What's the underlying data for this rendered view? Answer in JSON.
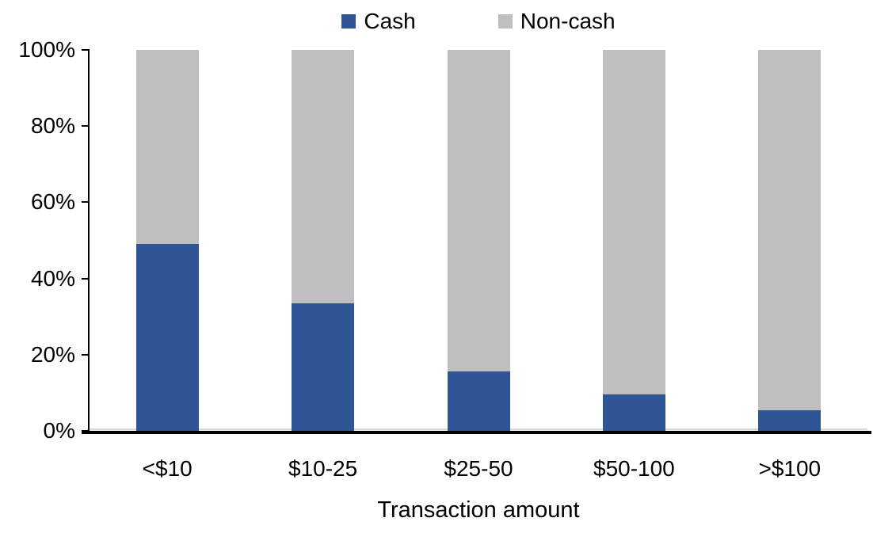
{
  "chart_data": {
    "type": "bar",
    "stacked": true,
    "orientation": "vertical",
    "title": "",
    "xlabel": "Transaction amount",
    "ylabel": "",
    "categories": [
      "<$10",
      "$10-25",
      "$25-50",
      "$50-100",
      ">$100"
    ],
    "series": [
      {
        "name": "Cash",
        "color": "#2F5597",
        "values": [
          49,
          33.5,
          15.5,
          9.5,
          5.5
        ]
      },
      {
        "name": "Non-cash",
        "color": "#BFBFBF",
        "values": [
          51,
          66.5,
          84.5,
          90.5,
          94.5
        ]
      }
    ],
    "ylim": [
      0,
      100
    ],
    "ytick_labels": [
      "0%",
      "20%",
      "40%",
      "60%",
      "80%",
      "100%"
    ],
    "grid": false,
    "legend_position": "top-center",
    "axis_color": "#000000",
    "zero_line_color": "#D9D9D9",
    "background_color": "#FFFFFF"
  }
}
